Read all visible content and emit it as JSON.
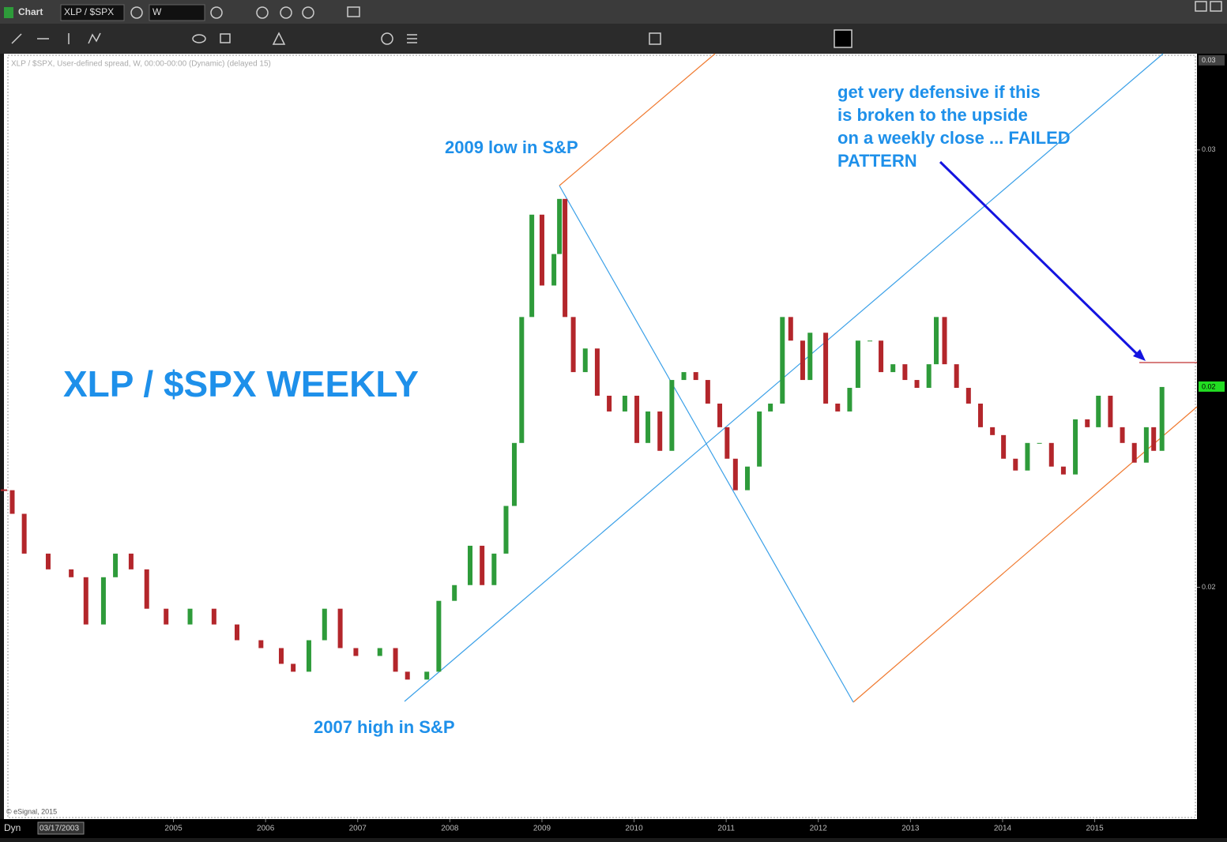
{
  "window": {
    "title": "Chart",
    "symbol": "XLP / $SPX",
    "interval": "W"
  },
  "chart_data": {
    "type": "candlestick",
    "header": "XLP / $SPX, User-defined spread, W, 00:00-00:00 (Dynamic) (delayed 15)",
    "x": [
      2003.16,
      2003.25,
      2003.38,
      2003.64,
      2003.89,
      2004.05,
      2004.24,
      2004.37,
      2004.54,
      2004.71,
      2004.92,
      2005.18,
      2005.44,
      2005.69,
      2005.95,
      2006.17,
      2006.3,
      2006.47,
      2006.64,
      2006.81,
      2006.98,
      2007.24,
      2007.41,
      2007.54,
      2007.75,
      2007.88,
      2008.05,
      2008.22,
      2008.35,
      2008.48,
      2008.61,
      2008.7,
      2008.78,
      2008.89,
      2009.0,
      2009.13,
      2009.19,
      2009.25,
      2009.34,
      2009.47,
      2009.6,
      2009.73,
      2009.9,
      2010.03,
      2010.15,
      2010.28,
      2010.41,
      2010.54,
      2010.67,
      2010.8,
      2010.93,
      2011.01,
      2011.1,
      2011.23,
      2011.36,
      2011.48,
      2011.61,
      2011.7,
      2011.83,
      2011.91,
      2012.08,
      2012.21,
      2012.34,
      2012.43,
      2012.56,
      2012.68,
      2012.81,
      2012.94,
      2013.07,
      2013.2,
      2013.28,
      2013.37,
      2013.5,
      2013.63,
      2013.76,
      2013.89,
      2014.01,
      2014.14,
      2014.27,
      2014.4,
      2014.53,
      2014.66,
      2014.79,
      2014.92,
      2015.04,
      2015.17,
      2015.3,
      2015.43,
      2015.56,
      2015.64,
      2015.73
    ],
    "values": [
      0.02222,
      0.02168,
      0.02077,
      0.02041,
      0.02023,
      0.01915,
      0.02023,
      0.02077,
      0.02041,
      0.01951,
      0.01915,
      0.01951,
      0.01915,
      0.01879,
      0.01861,
      0.01825,
      0.01807,
      0.01879,
      0.01951,
      0.01861,
      0.01843,
      0.01861,
      0.01807,
      0.01789,
      0.01807,
      0.01969,
      0.02005,
      0.02095,
      0.02005,
      0.02077,
      0.02186,
      0.0233,
      0.02618,
      0.02852,
      0.0269,
      0.02762,
      0.02888,
      0.02618,
      0.02492,
      0.02546,
      0.02438,
      0.02402,
      0.02438,
      0.0233,
      0.02402,
      0.02312,
      0.02474,
      0.02492,
      0.02474,
      0.0242,
      0.02366,
      0.02294,
      0.02222,
      0.02276,
      0.02402,
      0.0242,
      0.02618,
      0.02564,
      0.02474,
      0.02582,
      0.0242,
      0.02402,
      0.02456,
      0.02564,
      0.02564,
      0.02492,
      0.0251,
      0.02474,
      0.02456,
      0.0251,
      0.02618,
      0.0251,
      0.02456,
      0.0242,
      0.02366,
      0.02348,
      0.02294,
      0.02267,
      0.0233,
      0.0233,
      0.02276,
      0.02258,
      0.02384,
      0.02366,
      0.02438,
      0.02366,
      0.0233,
      0.02285,
      0.02366,
      0.02312,
      0.02458
    ],
    "xlim": [
      2003.16,
      2016.11
    ],
    "ylim": [
      0.0147,
      0.0322
    ],
    "xticks": [
      2005,
      2006,
      2007,
      2008,
      2009,
      2010,
      2011,
      2012,
      2013,
      2014,
      2015
    ],
    "yticks": [
      0.03,
      0.02
    ],
    "top_value": {
      "value": 0.03204,
      "label": "0.03"
    },
    "last_value": {
      "value": 0.02458,
      "label": "0.02"
    },
    "up_color": "#2e9b3a",
    "down_color": "#b3262b",
    "title": "XLP / $SPX WEEKLY",
    "annotations": {
      "low": "2009 low in S&P",
      "high": "2007 high in S&P",
      "warning": [
        "get very defensive if this",
        "is broken to the upside",
        "on a weekly close ... FAILED",
        "PATTERN"
      ]
    },
    "copyright": "© eSignal, 2015",
    "mode": "Dyn",
    "start_date": "03/17/2003"
  }
}
